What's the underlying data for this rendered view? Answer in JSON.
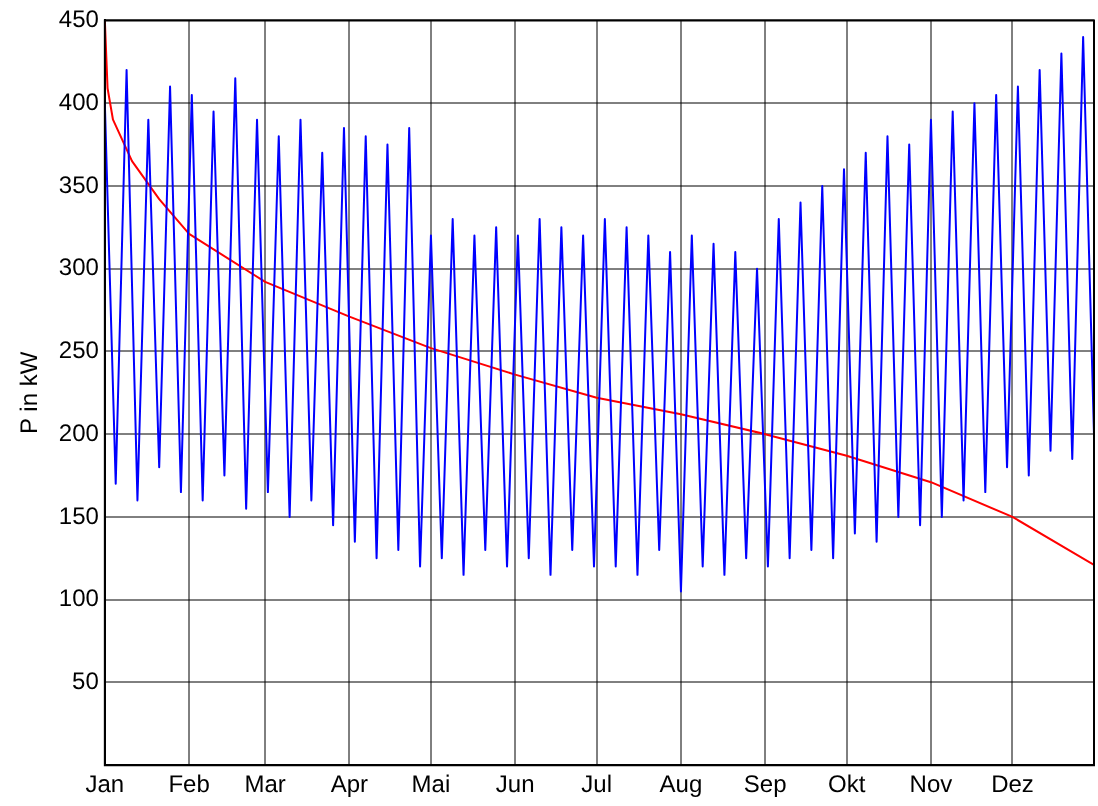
{
  "chart_data": {
    "type": "line",
    "ylabel": "P in kW",
    "xlim": [
      "--01-01",
      "--12-31"
    ],
    "ylim": [
      0,
      450
    ],
    "xticks": [
      {
        "value": "--01-01",
        "label": "Jan"
      },
      {
        "value": "--02-01",
        "label": "Feb"
      },
      {
        "value": "--03-01",
        "label": "Mar"
      },
      {
        "value": "--04-01",
        "label": "Apr"
      },
      {
        "value": "--05-01",
        "label": "Mai"
      },
      {
        "value": "--06-01",
        "label": "Jun"
      },
      {
        "value": "--07-01",
        "label": "Jul"
      },
      {
        "value": "--08-01",
        "label": "Aug"
      },
      {
        "value": "--09-01",
        "label": "Sep"
      },
      {
        "value": "--10-01",
        "label": "Okt"
      },
      {
        "value": "--11-01",
        "label": "Nov"
      },
      {
        "value": "--12-01",
        "label": "Dez"
      }
    ],
    "yticks": [
      50,
      100,
      150,
      200,
      250,
      300,
      350,
      400,
      450
    ],
    "grid": true,
    "marker": "none",
    "line_style": "solid",
    "series": [
      {
        "color": "#0000ff",
        "x": [
          "--01-01",
          "--01-05",
          "--01-09",
          "--01-13",
          "--01-17",
          "--01-21",
          "--01-25",
          "--01-29",
          "--02-02",
          "--02-06",
          "--02-10",
          "--02-14",
          "--02-18",
          "--02-22",
          "--02-26",
          "--03-02",
          "--03-06",
          "--03-10",
          "--03-14",
          "--03-18",
          "--03-22",
          "--03-26",
          "--03-30",
          "--04-03",
          "--04-07",
          "--04-11",
          "--04-15",
          "--04-19",
          "--04-23",
          "--04-27",
          "--05-01",
          "--05-05",
          "--05-09",
          "--05-13",
          "--05-17",
          "--05-21",
          "--05-25",
          "--05-29",
          "--06-02",
          "--06-06",
          "--06-10",
          "--06-14",
          "--06-18",
          "--06-22",
          "--06-26",
          "--06-30",
          "--07-04",
          "--07-08",
          "--07-12",
          "--07-16",
          "--07-20",
          "--07-24",
          "--07-28",
          "--08-01",
          "--08-05",
          "--08-09",
          "--08-13",
          "--08-17",
          "--08-21",
          "--08-25",
          "--08-29",
          "--09-02",
          "--09-06",
          "--09-10",
          "--09-14",
          "--09-18",
          "--09-22",
          "--09-26",
          "--09-30",
          "--10-04",
          "--10-08",
          "--10-12",
          "--10-16",
          "--10-20",
          "--10-24",
          "--10-28",
          "--11-01",
          "--11-05",
          "--11-09",
          "--11-13",
          "--11-17",
          "--11-21",
          "--11-25",
          "--11-29",
          "--12-03",
          "--12-07",
          "--12-11",
          "--12-15",
          "--12-19",
          "--12-23",
          "--12-27",
          "--12-31"
        ],
        "values": [
          400,
          170,
          420,
          160,
          390,
          180,
          410,
          165,
          405,
          160,
          395,
          175,
          415,
          155,
          390,
          165,
          380,
          150,
          390,
          160,
          370,
          145,
          385,
          135,
          380,
          125,
          375,
          130,
          385,
          120,
          320,
          125,
          330,
          115,
          320,
          130,
          325,
          120,
          320,
          125,
          330,
          115,
          325,
          130,
          320,
          120,
          330,
          120,
          325,
          115,
          320,
          130,
          310,
          105,
          320,
          120,
          315,
          115,
          310,
          125,
          300,
          120,
          330,
          125,
          340,
          130,
          350,
          125,
          360,
          140,
          370,
          135,
          380,
          150,
          375,
          145,
          390,
          150,
          395,
          160,
          400,
          165,
          405,
          180,
          410,
          175,
          420,
          190,
          430,
          185,
          440,
          200
        ]
      },
      {
        "color": "#ff0000",
        "x": [
          "--01-01",
          "--01-02",
          "--01-04",
          "--01-11",
          "--01-21",
          "--02-01",
          "--03-01",
          "--04-01",
          "--05-01",
          "--06-01",
          "--07-01",
          "--08-01",
          "--09-01",
          "--10-01",
          "--11-01",
          "--12-01",
          "--12-31"
        ],
        "values": [
          450,
          409,
          390,
          365,
          342,
          321,
          292,
          271,
          252,
          236,
          222,
          212,
          200,
          187,
          171,
          150,
          121
        ]
      }
    ]
  }
}
